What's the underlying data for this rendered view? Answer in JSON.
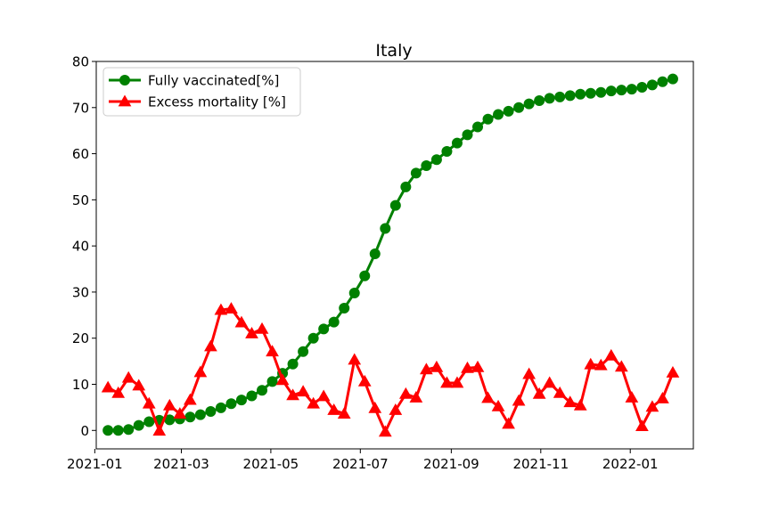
{
  "chart_data": {
    "type": "line",
    "title": "Italy",
    "xlabel": "",
    "ylabel": "",
    "ylim": [
      -4,
      80
    ],
    "xlim": [
      "2021-01-02",
      "2022-02-13"
    ],
    "grid": false,
    "legend_position": "top-left",
    "x_ticks": [
      "2021-01",
      "2021-03",
      "2021-05",
      "2021-07",
      "2021-09",
      "2021-11",
      "2022-01"
    ],
    "y_ticks": [
      0,
      10,
      20,
      30,
      40,
      50,
      60,
      70,
      80
    ],
    "series": [
      {
        "name": "Fully vaccinated[%]",
        "color": "#008000",
        "marker": "circle",
        "x": [
          "2021-01-10",
          "2021-01-17",
          "2021-01-24",
          "2021-01-31",
          "2021-02-07",
          "2021-02-14",
          "2021-02-21",
          "2021-02-28",
          "2021-03-07",
          "2021-03-14",
          "2021-03-21",
          "2021-03-28",
          "2021-04-04",
          "2021-04-11",
          "2021-04-18",
          "2021-04-25",
          "2021-05-02",
          "2021-05-09",
          "2021-05-16",
          "2021-05-23",
          "2021-05-30",
          "2021-06-06",
          "2021-06-13",
          "2021-06-20",
          "2021-06-27",
          "2021-07-04",
          "2021-07-11",
          "2021-07-18",
          "2021-07-25",
          "2021-08-01",
          "2021-08-08",
          "2021-08-15",
          "2021-08-22",
          "2021-08-29",
          "2021-09-05",
          "2021-09-12",
          "2021-09-19",
          "2021-09-26",
          "2021-10-03",
          "2021-10-10",
          "2021-10-17",
          "2021-10-24",
          "2021-10-31",
          "2021-11-07",
          "2021-11-14",
          "2021-11-21",
          "2021-11-28",
          "2021-12-05",
          "2021-12-12",
          "2021-12-19",
          "2021-12-26",
          "2022-01-02",
          "2022-01-09",
          "2022-01-16",
          "2022-01-23",
          "2022-01-30"
        ],
        "values": [
          0.0,
          0.0,
          0.2,
          1.1,
          1.9,
          2.2,
          2.3,
          2.5,
          2.9,
          3.4,
          4.1,
          4.9,
          5.8,
          6.6,
          7.5,
          8.7,
          10.6,
          12.4,
          14.4,
          17.1,
          20.0,
          22.0,
          23.5,
          26.5,
          29.8,
          33.5,
          38.3,
          43.8,
          48.8,
          52.8,
          55.8,
          57.4,
          58.7,
          60.5,
          62.3,
          64.1,
          65.8,
          67.5,
          68.5,
          69.2,
          70.0,
          70.8,
          71.5,
          72.0,
          72.3,
          72.6,
          72.9,
          73.1,
          73.3,
          73.6,
          73.8,
          74.0,
          74.4,
          74.9,
          75.6,
          76.2
        ]
      },
      {
        "name": "Excess mortality [%]",
        "color": "#ff0000",
        "marker": "triangle",
        "x": [
          "2021-01-10",
          "2021-01-17",
          "2021-01-24",
          "2021-01-31",
          "2021-02-07",
          "2021-02-14",
          "2021-02-21",
          "2021-02-28",
          "2021-03-07",
          "2021-03-14",
          "2021-03-21",
          "2021-03-28",
          "2021-04-04",
          "2021-04-11",
          "2021-04-18",
          "2021-04-25",
          "2021-05-02",
          "2021-05-09",
          "2021-05-16",
          "2021-05-23",
          "2021-05-30",
          "2021-06-06",
          "2021-06-13",
          "2021-06-20",
          "2021-06-27",
          "2021-07-04",
          "2021-07-11",
          "2021-07-18",
          "2021-07-25",
          "2021-08-01",
          "2021-08-08",
          "2021-08-15",
          "2021-08-22",
          "2021-08-29",
          "2021-09-05",
          "2021-09-12",
          "2021-09-19",
          "2021-09-26",
          "2021-10-03",
          "2021-10-10",
          "2021-10-17",
          "2021-10-24",
          "2021-10-31",
          "2021-11-07",
          "2021-11-14",
          "2021-11-21",
          "2021-11-28",
          "2021-12-05",
          "2021-12-12",
          "2021-12-19",
          "2021-12-26",
          "2022-01-02",
          "2022-01-09",
          "2022-01-16",
          "2022-01-23",
          "2022-01-30"
        ],
        "values": [
          9.3,
          8.1,
          11.4,
          9.7,
          5.8,
          -0.1,
          5.4,
          3.6,
          6.6,
          12.6,
          18.2,
          26.1,
          26.4,
          23.4,
          21.0,
          22.0,
          17.1,
          10.9,
          7.6,
          8.4,
          5.8,
          7.4,
          4.4,
          3.6,
          15.3,
          10.6,
          4.8,
          -0.3,
          4.4,
          7.9,
          7.1,
          13.2,
          13.7,
          10.3,
          10.3,
          13.5,
          13.7,
          7.0,
          5.2,
          1.4,
          6.4,
          12.2,
          7.9,
          10.3,
          8.1,
          6.1,
          5.4,
          14.3,
          14.1,
          16.2,
          13.8,
          7.1,
          0.9,
          5.1,
          6.9,
          12.5
        ]
      }
    ]
  }
}
